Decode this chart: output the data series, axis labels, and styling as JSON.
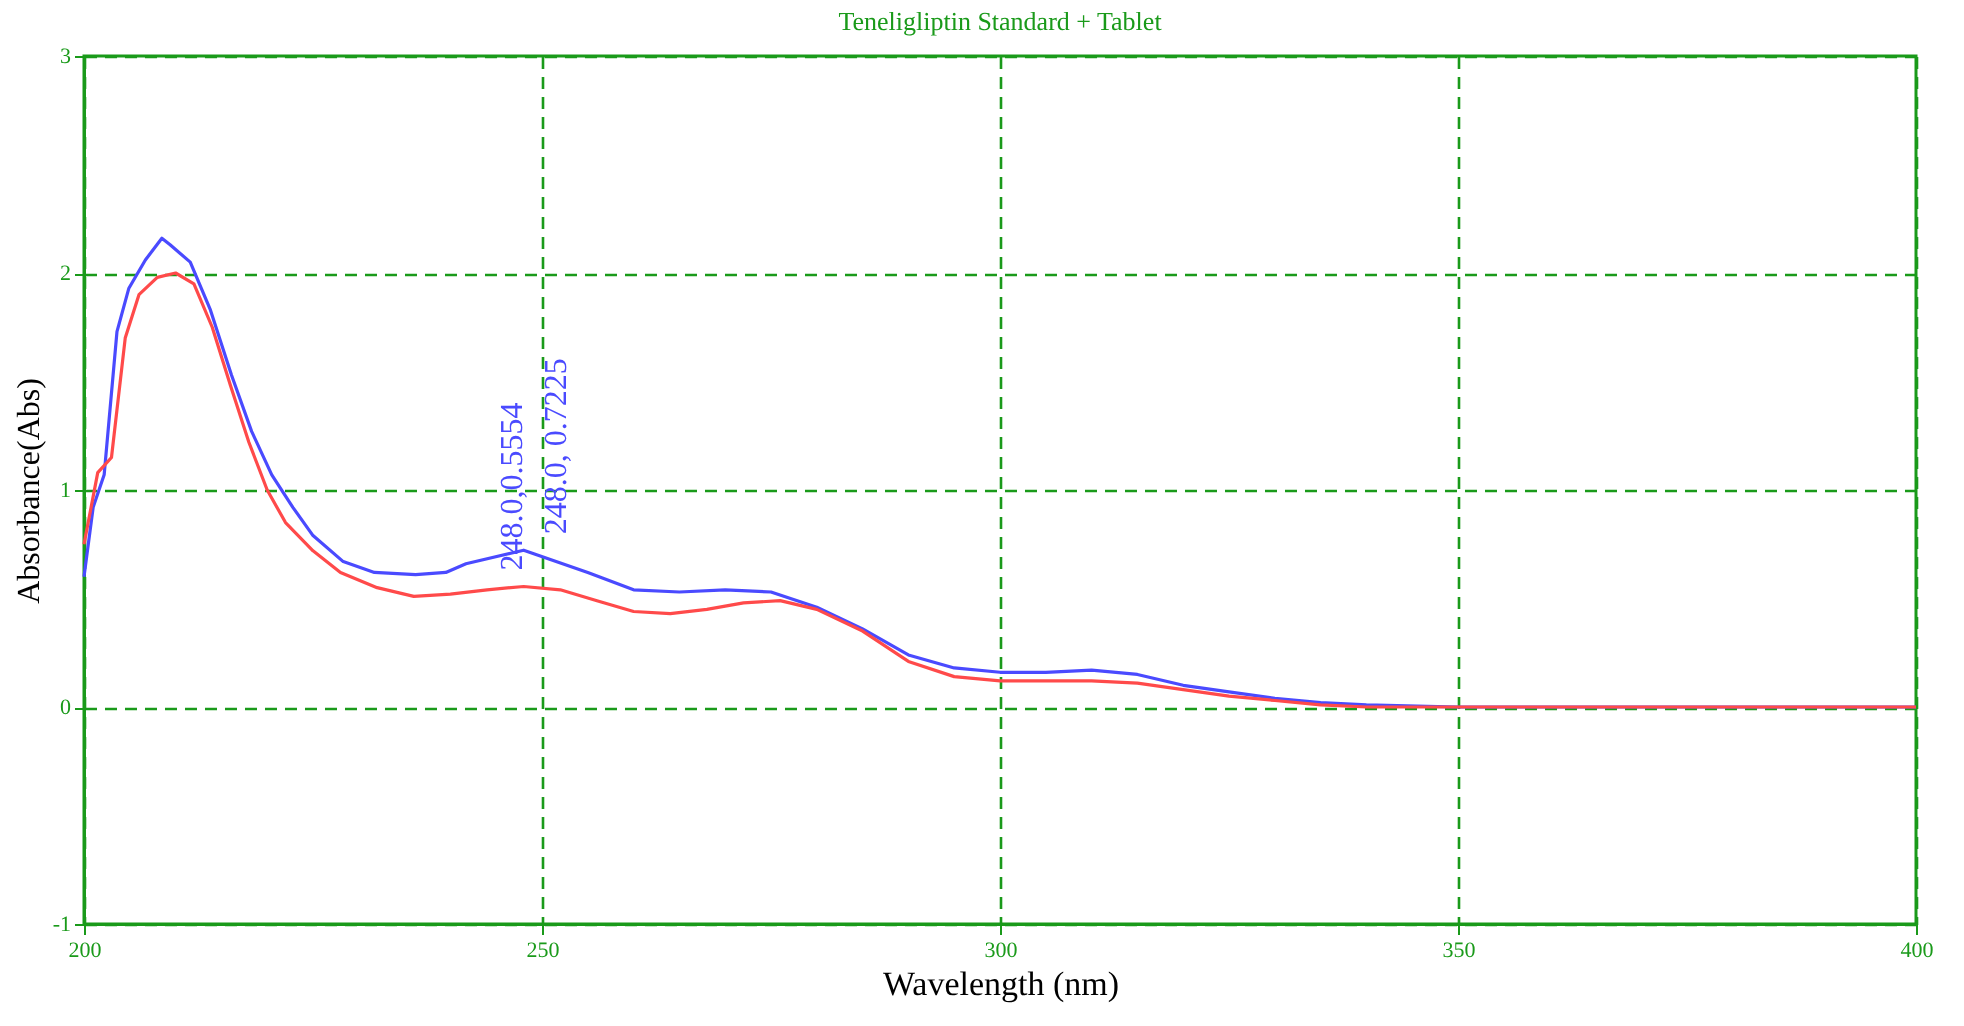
{
  "chart_data": {
    "type": "line",
    "title": "Teneligliptin  Standard  + Tablet",
    "xlabel": "Wavelength (nm)",
    "ylabel": "Absorbance(Abs)",
    "xlim": [
      200,
      400
    ],
    "xticks": [
      200,
      250,
      300,
      350,
      400
    ],
    "ylim": [
      -1,
      3
    ],
    "yticks": [
      -1,
      0,
      1,
      2,
      3
    ],
    "grid": true,
    "line_style": "solid",
    "series": [
      {
        "color": "#4a4aff",
        "x": [
          200,
          201,
          202.2,
          203.6,
          204.9,
          206.7,
          208.5,
          209.4,
          211.6,
          213.8,
          216.1,
          218.3,
          220.5,
          222.8,
          225,
          228.3,
          231.7,
          236.2,
          239.5,
          241.7,
          248,
          255,
          260,
          265,
          270,
          275,
          280,
          285,
          290,
          295,
          300,
          305,
          310,
          315,
          320,
          325,
          330,
          335,
          340,
          350,
          360,
          400
        ],
        "values": [
          0.6,
          0.92,
          1.07,
          1.73,
          1.93,
          2.06,
          2.16,
          2.13,
          2.05,
          1.83,
          1.53,
          1.27,
          1.07,
          0.92,
          0.79,
          0.67,
          0.62,
          0.61,
          0.62,
          0.66,
          0.7225,
          0.62,
          0.54,
          0.53,
          0.54,
          0.53,
          0.46,
          0.36,
          0.24,
          0.18,
          0.16,
          0.16,
          0.17,
          0.15,
          0.1,
          0.07,
          0.04,
          0.02,
          0.01,
          0.0,
          0.0,
          0.0
        ]
      },
      {
        "color": "#ff4a4a",
        "x": [
          200,
          201.5,
          203,
          204.5,
          206,
          208,
          210,
          212,
          214,
          216,
          218,
          220,
          222,
          225,
          228,
          232,
          236,
          240,
          244,
          248,
          252,
          256,
          260,
          264,
          268,
          272,
          276,
          280,
          285,
          290,
          295,
          300,
          305,
          310,
          315,
          320,
          325,
          330,
          335,
          340,
          400
        ],
        "values": [
          0.75,
          1.08,
          1.15,
          1.7,
          1.9,
          1.98,
          2.0,
          1.95,
          1.75,
          1.48,
          1.22,
          1.0,
          0.85,
          0.72,
          0.62,
          0.55,
          0.51,
          0.52,
          0.54,
          0.5554,
          0.54,
          0.49,
          0.44,
          0.43,
          0.45,
          0.48,
          0.49,
          0.45,
          0.35,
          0.21,
          0.14,
          0.12,
          0.12,
          0.12,
          0.11,
          0.08,
          0.05,
          0.03,
          0.01,
          0.0,
          0.0
        ]
      }
    ],
    "annotations": [
      {
        "text": "248.0,0.5554",
        "x": 248,
        "y": 0.5554
      },
      {
        "text": "248.0, 0.7225",
        "x": 248,
        "y": 0.7225
      }
    ]
  }
}
